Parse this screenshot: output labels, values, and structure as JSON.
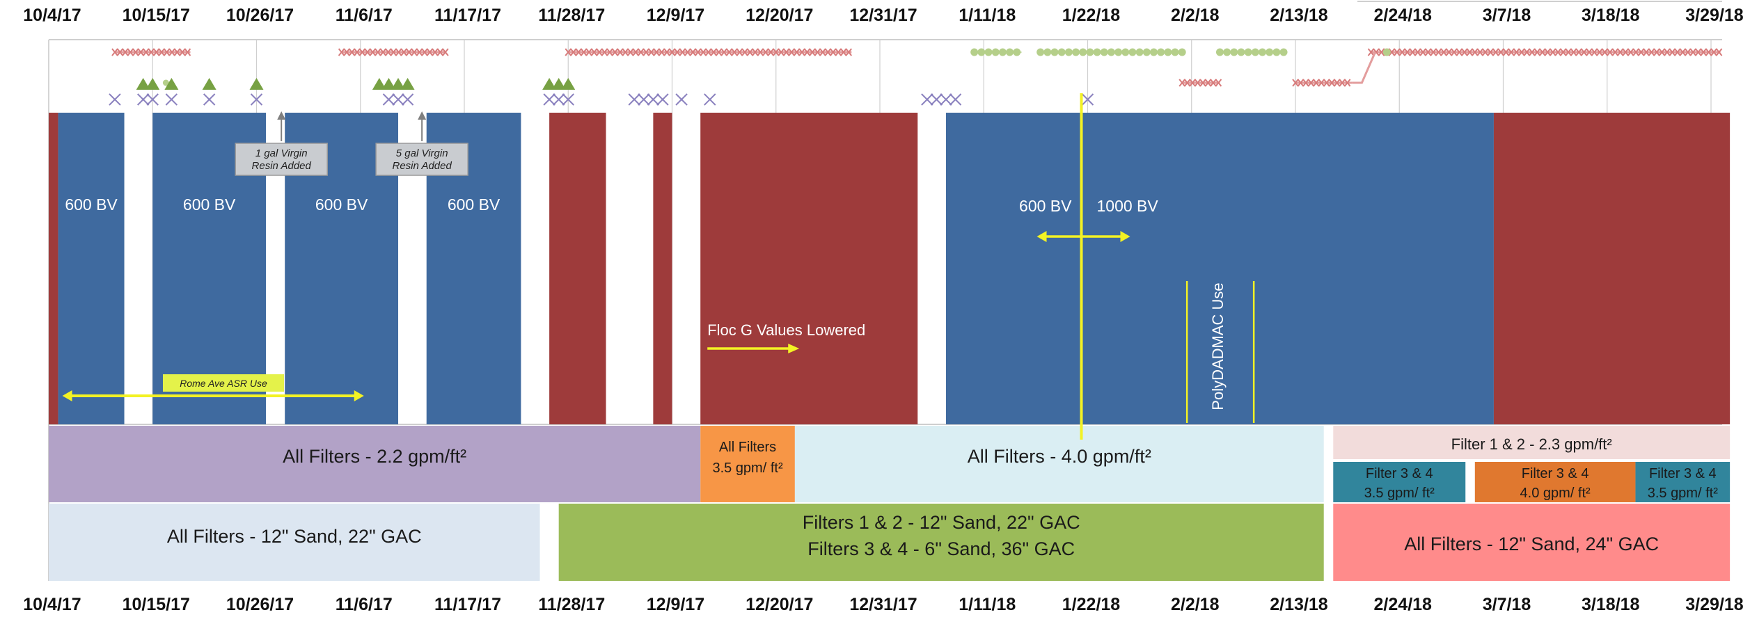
{
  "chart_data": {
    "type": "timeline",
    "x_axis": {
      "ticks": [
        "10/4/17",
        "10/15/17",
        "10/26/17",
        "11/6/17",
        "11/17/17",
        "11/28/17",
        "12/9/17",
        "12/20/17",
        "12/31/17",
        "1/11/18",
        "1/22/18",
        "2/2/18",
        "2/13/18",
        "2/24/18",
        "3/7/18",
        "3/18/18",
        "3/29/18"
      ],
      "range": [
        "10/4/17",
        "3/31/18"
      ]
    },
    "run_bars": [
      {
        "start": "10/4/17",
        "end": "10/5/17",
        "color": "#9E3B3B"
      },
      {
        "start": "10/5/17",
        "end": "10/12/17",
        "color": "#3F6A9F",
        "label": "600 BV"
      },
      {
        "start": "10/15/17",
        "end": "10/27/17",
        "color": "#3F6A9F",
        "label": "600 BV"
      },
      {
        "start": "10/29/17",
        "end": "11/10/17",
        "color": "#3F6A9F",
        "label": "600 BV"
      },
      {
        "start": "11/13/17",
        "end": "11/23/17",
        "color": "#3F6A9F",
        "label": "600 BV"
      },
      {
        "start": "11/26/17",
        "end": "12/2/17",
        "color": "#9E3B3B"
      },
      {
        "start": "12/7/17",
        "end": "12/9/17",
        "color": "#9E3B3B"
      },
      {
        "start": "12/12/17",
        "end": "1/4/18",
        "color": "#9E3B3B"
      },
      {
        "start": "1/7/18",
        "end": "3/6/18",
        "color": "#3F6A9F"
      },
      {
        "start": "3/6/18",
        "end": "3/31/18",
        "color": "#9E3B3B"
      }
    ],
    "annotations": [
      {
        "text": "1 gal Virgin Resin Added",
        "date": "10/29/17"
      },
      {
        "text": "5 gal Virgin Resin Added",
        "date": "11/12/17"
      },
      {
        "text": "Rome Ave ASR Use",
        "start": "10/5/17",
        "end": "11/6/17"
      },
      {
        "text": "Floc G Values Lowered",
        "date": "12/12/17"
      },
      {
        "text_left": "600 BV",
        "text_right": "1000 BV",
        "date": "1/22/18"
      },
      {
        "text": "PolyDADMAC Use",
        "start": "2/1/18",
        "end": "2/8/18"
      }
    ],
    "flow_rates": [
      {
        "start": "10/4/17",
        "end": "12/12/17",
        "label": "All Filters - 2.2 gpm/ft²",
        "color": "#B2A2C7"
      },
      {
        "start": "12/12/17",
        "end": "12/22/17",
        "label_lines": [
          "All Filters",
          "3.5 gpm/ ft²"
        ],
        "color": "#F79646"
      },
      {
        "start": "12/22/17",
        "end": "2/16/18",
        "label": "All Filters - 4.0 gpm/ft²",
        "color": "#DAEEF3"
      },
      {
        "start": "2/17/18",
        "end": "3/31/18",
        "label": "Filter 1 & 2 - 2.3 gpm/ft²",
        "color": "#F2DCDB"
      },
      {
        "start": "2/17/18",
        "end": "3/3/18",
        "label_lines": [
          "Filter 3 & 4",
          "3.5 gpm/ ft²"
        ],
        "color": "#31859C"
      },
      {
        "start": "3/4/18",
        "end": "3/21/18",
        "label_lines": [
          "Filter 3 & 4",
          "4.0 gpm/ ft²"
        ],
        "color": "#E0782F"
      },
      {
        "start": "3/21/18",
        "end": "3/31/18",
        "label_lines": [
          "Filter 3 & 4",
          "3.5 gpm/ ft²"
        ],
        "color": "#31859C"
      }
    ],
    "media": [
      {
        "start": "10/4/17",
        "end": "11/25/17",
        "label": "All Filters -  12\" Sand, 22\" GAC",
        "color": "#DCE6F1"
      },
      {
        "start": "11/27/17",
        "end": "2/16/18",
        "label_lines": [
          "Filters 1 & 2 - 12\" Sand, 22\" GAC",
          "Filters 3 & 4 - 6\" Sand, 36\" GAC"
        ],
        "color": "#9BBB59"
      },
      {
        "start": "2/17/18",
        "end": "3/31/18",
        "label": "All Filters - 12\" Sand, 24\" GAC",
        "color": "#FF8B8B"
      }
    ],
    "markers": {
      "red_x_spans": [
        {
          "start": "10/11/17",
          "end": "10/19/17",
          "row": 1
        },
        {
          "start": "11/4/17",
          "end": "11/15/17",
          "row": 1
        },
        {
          "start": "11/28/17",
          "end": "12/28/17",
          "row": 1
        },
        {
          "start": "2/1/18",
          "end": "2/5/18",
          "row": 2
        },
        {
          "start": "2/13/18",
          "end": "2/19/18",
          "row": 2
        },
        {
          "start": "2/21/18",
          "end": "3/30/18",
          "row": 1
        }
      ],
      "green_dot_spans": [
        {
          "start": "1/10/18",
          "end": "1/15/18"
        },
        {
          "start": "1/17/18",
          "end": "2/1/18"
        },
        {
          "start": "2/5/18",
          "end": "2/12/18"
        }
      ],
      "triangles": [
        "10/14/17",
        "10/15/17",
        "10/17/17",
        "10/21/17",
        "10/26/17",
        "11/8/17",
        "11/9/17",
        "11/10/17",
        "11/11/17",
        "11/26/17",
        "11/27/17",
        "11/28/17"
      ],
      "purple_x": [
        "10/11/17",
        "10/14/17",
        "10/15/17",
        "10/17/17",
        "10/21/17",
        "10/26/17",
        "11/9/17",
        "11/10/17",
        "11/11/17",
        "11/26/17",
        "11/27/17",
        "11/28/17",
        "12/5/17",
        "12/6/17",
        "12/7/17",
        "12/8/17",
        "12/10/17",
        "12/13/17",
        "1/5/18",
        "1/6/18",
        "1/7/18",
        "1/8/18",
        "1/22/18"
      ]
    }
  }
}
